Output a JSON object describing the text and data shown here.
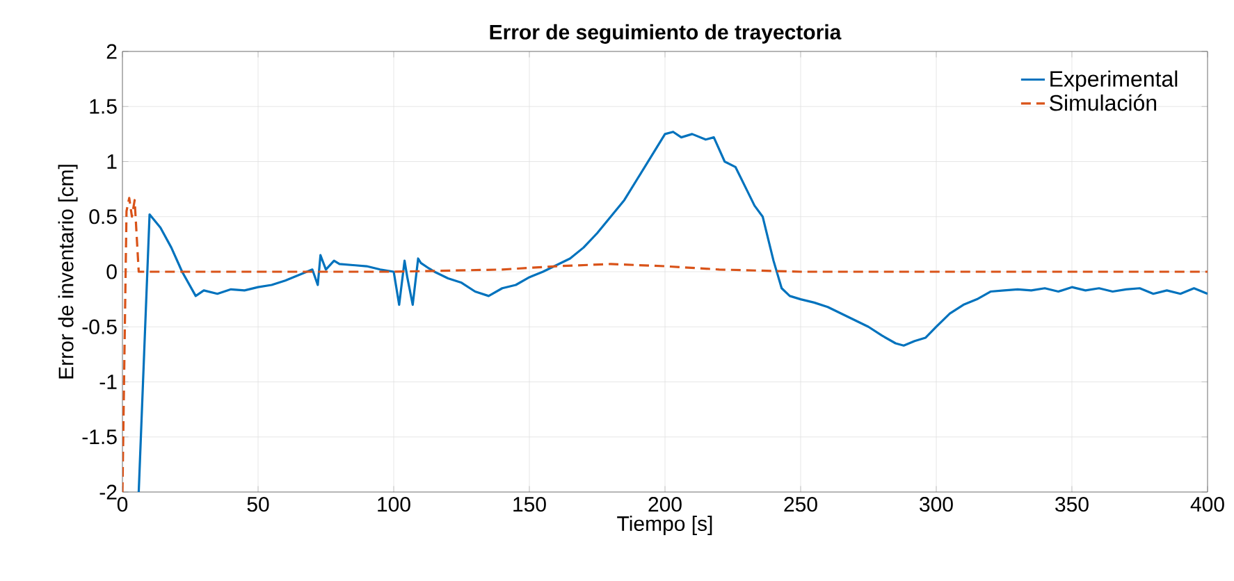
{
  "chart_data": {
    "type": "line",
    "title": "Error de seguimiento de trayectoria",
    "xlabel": "Tiempo [s]",
    "ylabel": "Error de inventario [cm]",
    "xlim": [
      0,
      400
    ],
    "ylim": [
      -2,
      2
    ],
    "xticks": [
      0,
      50,
      100,
      150,
      200,
      250,
      300,
      350,
      400
    ],
    "yticks": [
      -2,
      -1.5,
      -1,
      -0.5,
      0,
      0.5,
      1,
      1.5,
      2
    ],
    "grid": true,
    "legend": "top right",
    "series": [
      {
        "name": "Experimental",
        "color": "#0072bd",
        "line_style": "solid",
        "x": [
          6,
          10,
          14,
          18,
          22,
          27,
          30,
          35,
          40,
          45,
          50,
          55,
          60,
          65,
          70,
          72,
          73,
          75,
          78,
          80,
          85,
          90,
          95,
          100,
          102,
          104,
          105,
          107,
          109,
          110,
          113,
          115,
          120,
          125,
          130,
          135,
          140,
          145,
          150,
          155,
          160,
          165,
          170,
          175,
          180,
          185,
          190,
          195,
          200,
          203,
          206,
          210,
          215,
          218,
          222,
          226,
          230,
          233,
          236,
          240,
          243,
          246,
          250,
          255,
          260,
          265,
          270,
          275,
          280,
          285,
          288,
          292,
          296,
          300,
          305,
          310,
          315,
          320,
          325,
          330,
          335,
          340,
          345,
          350,
          355,
          360,
          365,
          370,
          375,
          380,
          385,
          390,
          395,
          400
        ],
        "values": [
          -2,
          0.52,
          0.4,
          0.22,
          0,
          -0.22,
          -0.17,
          -0.2,
          -0.16,
          -0.17,
          -0.14,
          -0.12,
          -0.08,
          -0.03,
          0.02,
          -0.12,
          0.15,
          0.02,
          0.1,
          0.07,
          0.06,
          0.05,
          0.02,
          0,
          -0.3,
          0.1,
          -0.05,
          -0.3,
          0.12,
          0.08,
          0.03,
          0,
          -0.06,
          -0.1,
          -0.18,
          -0.22,
          -0.15,
          -0.12,
          -0.05,
          0,
          0.06,
          0.12,
          0.22,
          0.35,
          0.5,
          0.65,
          0.85,
          1.05,
          1.25,
          1.27,
          1.22,
          1.25,
          1.2,
          1.22,
          1.0,
          0.95,
          0.75,
          0.6,
          0.5,
          0.1,
          -0.15,
          -0.22,
          -0.25,
          -0.28,
          -0.32,
          -0.38,
          -0.44,
          -0.5,
          -0.58,
          -0.65,
          -0.67,
          -0.63,
          -0.6,
          -0.5,
          -0.38,
          -0.3,
          -0.25,
          -0.18,
          -0.17,
          -0.16,
          -0.17,
          -0.15,
          -0.18,
          -0.14,
          -0.17,
          -0.15,
          -0.18,
          -0.16,
          -0.15,
          -0.2,
          -0.17,
          -0.2,
          -0.15,
          -0.2
        ]
      },
      {
        "name": "Simulación",
        "color": "#d95319",
        "line_style": "dashed",
        "x": [
          0,
          1.5,
          2.5,
          3.5,
          4.5,
          6,
          20,
          60,
          100,
          140,
          160,
          180,
          200,
          220,
          250,
          300,
          350,
          400
        ],
        "values": [
          -2,
          0.55,
          0.67,
          0.5,
          0.65,
          0,
          0,
          0,
          0,
          0.02,
          0.05,
          0.07,
          0.05,
          0.02,
          0,
          0,
          0,
          0
        ]
      }
    ]
  }
}
